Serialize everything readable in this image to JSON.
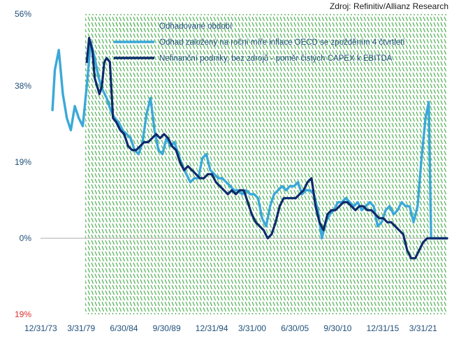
{
  "source": "Zdroj: Refinitiv/Allianz Research",
  "chart_data": {
    "type": "line",
    "title": "",
    "xlabel": "",
    "ylabel": "",
    "ylim": [
      -19,
      56
    ],
    "y_ticks": [
      {
        "value": 56,
        "label": "56%"
      },
      {
        "value": 38,
        "label": "38%"
      },
      {
        "value": 19,
        "label": "19%"
      },
      {
        "value": 0,
        "label": "0%"
      },
      {
        "value": -19,
        "label": "19%",
        "color": "#e03030"
      }
    ],
    "x_ticks": [
      "12/31/73",
      "3/31/79",
      "6/30/84",
      "9/30/89",
      "12/31/94",
      "3/31/00",
      "6/30/05",
      "9/30/10",
      "12/31/15",
      "3/31/21"
    ],
    "xlim": [
      1973.5,
      2024.5
    ],
    "shaded_region": {
      "name": "Odhadované období",
      "x_start": 1979.1,
      "x_end": 2024.5,
      "color": "#4caf50"
    },
    "series": [
      {
        "name": "Odhad založený na roční míře inflace OECD se zpožděním 4 čtvrtletí",
        "color": "#3ba8d8",
        "x": [
          1975.0,
          1975.3,
          1975.8,
          1976.3,
          1976.8,
          1977.3,
          1977.8,
          1978.3,
          1978.8,
          1979.3,
          1979.8,
          1980.3,
          1980.8,
          1981.3,
          1981.8,
          1982.3,
          1982.8,
          1983.3,
          1983.8,
          1984.3,
          1984.8,
          1985.3,
          1985.8,
          1986.3,
          1986.8,
          1987.3,
          1987.8,
          1988.3,
          1988.8,
          1989.3,
          1989.8,
          1990.3,
          1990.8,
          1991.3,
          1991.8,
          1992.3,
          1992.8,
          1993.3,
          1993.8,
          1994.3,
          1994.8,
          1995.3,
          1995.8,
          1996.3,
          1996.8,
          1997.3,
          1997.8,
          1998.3,
          1998.8,
          1999.3,
          1999.8,
          2000.3,
          2000.8,
          2001.3,
          2001.8,
          2002.3,
          2002.8,
          2003.3,
          2003.8,
          2004.3,
          2004.8,
          2005.3,
          2005.8,
          2006.3,
          2006.8,
          2007.3,
          2007.8,
          2008.3,
          2008.8,
          2009.3,
          2009.8,
          2010.3,
          2010.8,
          2011.3,
          2011.8,
          2012.3,
          2012.8,
          2013.3,
          2013.8,
          2014.3,
          2014.8,
          2015.3,
          2015.8,
          2016.3,
          2016.8,
          2017.3,
          2017.8,
          2018.3,
          2018.8,
          2019.3,
          2019.8,
          2020.3,
          2020.8,
          2021.3,
          2021.8,
          2022.2,
          2022.5,
          2022.7,
          2023.0,
          2023.5,
          2024.0,
          2024.5
        ],
        "values": [
          32,
          42,
          47,
          36,
          30,
          27,
          33,
          30,
          28,
          38,
          49,
          45,
          40,
          37,
          35,
          32,
          30,
          29,
          27,
          26,
          25,
          22,
          21,
          24,
          31,
          35,
          27,
          22,
          21,
          25,
          23,
          24,
          21,
          18,
          16,
          14,
          15,
          15,
          20,
          21,
          17,
          16,
          15,
          15,
          14,
          13,
          12,
          12,
          11,
          12,
          11,
          11,
          10,
          5,
          3,
          8,
          11,
          12,
          13,
          12,
          13,
          13,
          14,
          11,
          12,
          12,
          11,
          7,
          0,
          4,
          6,
          7,
          9,
          9,
          10,
          9,
          8,
          9,
          7,
          8,
          9,
          8,
          3,
          4,
          7,
          8,
          6,
          7,
          9,
          8,
          8,
          4,
          8,
          20,
          30,
          34,
          0,
          0,
          0,
          0,
          0,
          0
        ]
      },
      {
        "name": "Nefinanční podniky, bez zdrojů - poměr čistých CAPEX k EBITDA",
        "color": "#0d2b6b",
        "x": [
          1979.3,
          1979.6,
          1980.0,
          1980.3,
          1980.6,
          1980.9,
          1981.2,
          1981.5,
          1981.8,
          1982.2,
          1982.6,
          1983.0,
          1983.5,
          1984.0,
          1984.5,
          1985.0,
          1985.5,
          1986.0,
          1986.5,
          1987.0,
          1987.5,
          1988.0,
          1988.5,
          1989.0,
          1989.5,
          1990.0,
          1990.5,
          1991.0,
          1991.5,
          1992.0,
          1992.5,
          1993.0,
          1993.5,
          1994.0,
          1994.5,
          1995.0,
          1995.5,
          1996.0,
          1996.5,
          1997.0,
          1997.5,
          1998.0,
          1998.5,
          1999.0,
          1999.5,
          2000.0,
          2000.5,
          2001.0,
          2001.5,
          2002.0,
          2002.5,
          2003.0,
          2003.5,
          2004.0,
          2004.5,
          2005.0,
          2005.5,
          2006.0,
          2006.5,
          2007.0,
          2007.5,
          2008.0,
          2008.5,
          2009.0,
          2009.5,
          2010.0,
          2010.5,
          2011.0,
          2011.5,
          2012.0,
          2012.5,
          2013.0,
          2013.5,
          2014.0,
          2014.5,
          2015.0,
          2015.5,
          2016.0,
          2016.5,
          2017.0,
          2017.5,
          2018.0,
          2018.5,
          2019.0,
          2019.5,
          2020.0,
          2020.5,
          2021.0,
          2021.5,
          2022.0,
          2022.5,
          2023.0,
          2023.5,
          2024.0,
          2024.5
        ],
        "values": [
          44,
          50,
          47,
          40,
          38,
          36,
          38,
          44,
          45,
          44,
          30,
          29,
          27,
          26,
          23,
          22,
          22,
          23,
          24,
          24,
          25,
          26,
          25,
          26,
          25,
          23,
          22,
          19,
          17,
          18,
          17,
          16,
          15,
          15,
          16,
          16,
          14,
          13,
          12,
          11,
          12,
          11,
          12,
          12,
          9,
          6,
          4,
          3,
          2,
          0,
          1,
          4,
          8,
          10,
          10,
          10,
          10,
          11,
          12,
          14,
          15,
          8,
          4,
          2,
          6,
          7,
          7,
          8,
          9,
          9,
          8,
          7,
          8,
          8,
          7,
          7,
          6,
          5,
          5,
          4,
          4,
          3,
          2,
          1,
          -3,
          -5,
          -5,
          -3,
          -1,
          0,
          0,
          0,
          0,
          0,
          0
        ]
      }
    ]
  }
}
